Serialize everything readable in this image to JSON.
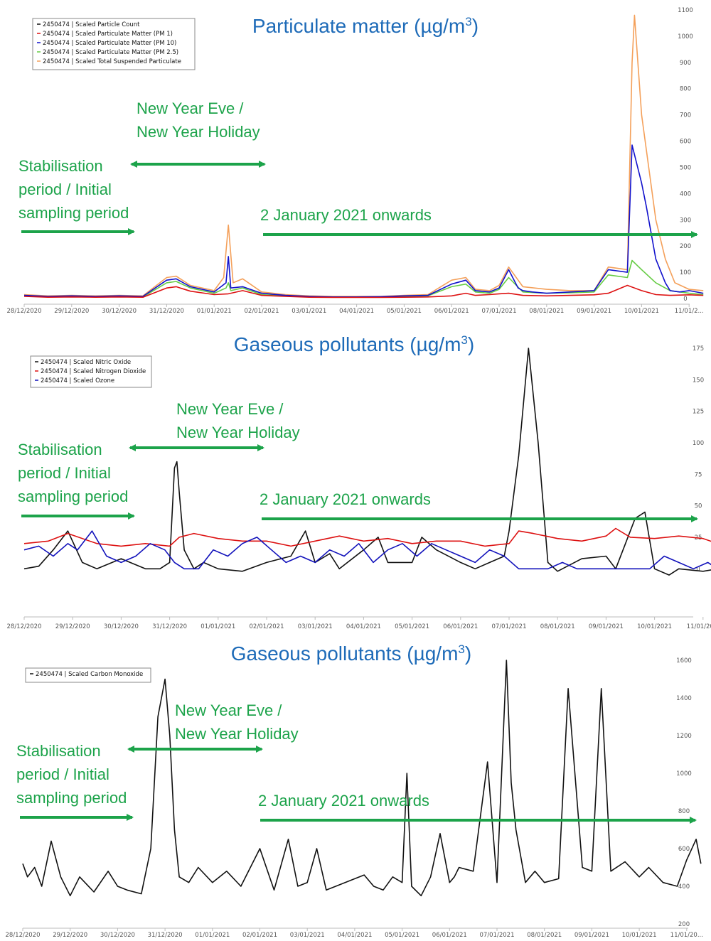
{
  "chart_data": [
    {
      "type": "line",
      "title": "Particulate matter (µg/m",
      "title_superscript": "3",
      "title_suffix": ")",
      "x_tick_labels": [
        "28/12/2020",
        "29/12/2020",
        "30/12/2020",
        "31/12/2020",
        "01/01/2021",
        "02/01/2021",
        "03/01/2021",
        "04/01/2021",
        "05/01/2021",
        "06/01/2021",
        "07/01/2021",
        "08/01/2021",
        "09/01/2021",
        "10/01/2021",
        "11/01/2..."
      ],
      "y_tick_labels": [
        "0",
        "100",
        "200",
        "300",
        "400",
        "500",
        "600",
        "700",
        "800",
        "900",
        "1000",
        "1100"
      ],
      "ylim": [
        0,
        1100
      ],
      "grid": false,
      "legend_position": "top-left",
      "series": [
        {
          "name": "2450474 | Scaled Particle Count",
          "color": "#111111",
          "x": [],
          "y": []
        },
        {
          "name": "2450474 | Scaled Particulate Matter (PM 1)",
          "color": "#dd1111",
          "x": [
            0,
            0.5,
            1,
            1.5,
            2,
            2.5,
            3,
            3.2,
            3.5,
            4,
            4.3,
            4.6,
            5,
            5.5,
            6,
            6.5,
            7,
            7.5,
            8,
            8.5,
            9,
            9.3,
            9.5,
            9.8,
            10,
            10.2,
            10.5,
            11,
            11.5,
            12,
            12.3,
            12.7,
            13,
            13.3,
            13.6,
            14,
            14.3
          ],
          "y": [
            8,
            5,
            6,
            5,
            6,
            5,
            40,
            45,
            28,
            15,
            18,
            30,
            12,
            8,
            5,
            4,
            4,
            4,
            5,
            6,
            10,
            20,
            12,
            15,
            18,
            20,
            12,
            10,
            12,
            14,
            20,
            50,
            30,
            15,
            12,
            14,
            12
          ]
        },
        {
          "name": "2450474 | Scaled Particulate Matter (PM 10)",
          "color": "#1111cc",
          "x": [
            0,
            0.5,
            1,
            1.5,
            2,
            2.5,
            3,
            3.2,
            3.5,
            4,
            4.25,
            4.3,
            4.35,
            4.6,
            5,
            5.5,
            6,
            6.5,
            7,
            7.5,
            8,
            8.5,
            9,
            9.3,
            9.5,
            9.8,
            10,
            10.2,
            10.4,
            10.5,
            10.7,
            11,
            11.5,
            12,
            12.3,
            12.7,
            12.8,
            13,
            13.1,
            13.3,
            13.5,
            13.6,
            13.8,
            14,
            14.3
          ],
          "y": [
            12,
            8,
            10,
            8,
            10,
            8,
            70,
            75,
            45,
            25,
            60,
            160,
            40,
            45,
            20,
            12,
            8,
            6,
            6,
            7,
            10,
            12,
            55,
            70,
            30,
            25,
            40,
            110,
            40,
            30,
            25,
            20,
            25,
            30,
            110,
            100,
            585,
            440,
            350,
            150,
            60,
            30,
            25,
            30,
            20
          ]
        },
        {
          "name": "2450474 | Scaled Particulate Matter (PM 2.5)",
          "color": "#66cc44",
          "x": [
            0,
            0.5,
            1,
            1.5,
            2,
            2.5,
            3,
            3.2,
            3.5,
            4,
            4.25,
            4.3,
            4.35,
            4.6,
            5,
            5.5,
            6,
            6.5,
            7,
            7.5,
            8,
            8.5,
            9,
            9.3,
            9.5,
            9.8,
            10,
            10.2,
            10.5,
            11,
            11.5,
            12,
            12.3,
            12.7,
            12.8,
            13,
            13.3,
            13.6,
            14,
            14.3
          ],
          "y": [
            10,
            6,
            8,
            6,
            8,
            6,
            60,
            65,
            40,
            20,
            40,
            60,
            30,
            40,
            15,
            10,
            6,
            5,
            5,
            6,
            8,
            10,
            45,
            55,
            25,
            20,
            35,
            80,
            25,
            20,
            22,
            25,
            90,
            80,
            145,
            110,
            60,
            30,
            20,
            15
          ]
        },
        {
          "name": "2450474 | Scaled Total Suspended Particulate",
          "color": "#f4a05a",
          "x": [
            0,
            0.5,
            1,
            1.5,
            2,
            2.5,
            3,
            3.2,
            3.5,
            4,
            4.2,
            4.3,
            4.4,
            4.6,
            5,
            5.5,
            6,
            6.5,
            7,
            7.5,
            8,
            8.5,
            9,
            9.3,
            9.5,
            9.8,
            10,
            10.2,
            10.5,
            11,
            11.5,
            12,
            12.3,
            12.7,
            12.8,
            12.85,
            13,
            13.3,
            13.5,
            13.7,
            14,
            14.3
          ],
          "y": [
            15,
            10,
            12,
            10,
            12,
            10,
            80,
            85,
            50,
            30,
            80,
            280,
            60,
            75,
            25,
            15,
            10,
            8,
            8,
            8,
            12,
            15,
            70,
            80,
            35,
            30,
            50,
            120,
            45,
            35,
            30,
            30,
            120,
            110,
            900,
            1080,
            700,
            300,
            150,
            60,
            35,
            30
          ]
        }
      ]
    },
    {
      "type": "line",
      "title": "Gaseous pollutants (µg/m",
      "title_superscript": "3",
      "title_suffix": ")",
      "x_tick_labels": [
        "28/12/2020",
        "29/12/2020",
        "30/12/2020",
        "31/12/2020",
        "01/01/2021",
        "02/01/2021",
        "03/01/2021",
        "04/01/2021",
        "05/01/2021",
        "06/01/2021",
        "07/01/2021",
        "08/01/2021",
        "09/01/2021",
        "10/01/2021",
        "11/01/20..."
      ],
      "y_tick_labels": [
        "0",
        "25",
        "50",
        "75",
        "100",
        "125",
        "150",
        "175"
      ],
      "ylim": [
        -10,
        175
      ],
      "grid": false,
      "legend_position": "top-left",
      "series": [
        {
          "name": "2450474 | Scaled Nitric Oxide",
          "color": "#111111",
          "x": [
            0,
            0.3,
            0.6,
            0.9,
            1.2,
            1.5,
            2,
            2.5,
            2.8,
            3,
            3.1,
            3.15,
            3.2,
            3.3,
            3.5,
            3.7,
            4,
            4.5,
            5,
            5.5,
            5.8,
            6,
            6.3,
            6.5,
            7,
            7.3,
            7.5,
            8,
            8.2,
            8.5,
            9,
            9.3,
            9.6,
            9.9,
            10,
            10.2,
            10.4,
            10.6,
            10.8,
            11,
            11.5,
            12,
            12.2,
            12.4,
            12.6,
            12.8,
            13,
            13.3,
            13.5,
            14,
            14.3
          ],
          "y": [
            0,
            2,
            15,
            30,
            5,
            0,
            8,
            0,
            0,
            5,
            80,
            85,
            60,
            15,
            0,
            5,
            0,
            -2,
            5,
            10,
            30,
            5,
            12,
            0,
            15,
            25,
            5,
            5,
            25,
            15,
            5,
            0,
            5,
            10,
            30,
            90,
            175,
            100,
            5,
            -2,
            8,
            10,
            0,
            20,
            40,
            45,
            0,
            -5,
            0,
            -2,
            0
          ]
        },
        {
          "name": "2450474 | Scaled Nitrogen Dioxide",
          "color": "#dd1111",
          "x": [
            0,
            0.5,
            0.9,
            1.5,
            2,
            2.5,
            3,
            3.2,
            3.5,
            4,
            4.5,
            5,
            5.5,
            6,
            6.5,
            7,
            7.5,
            8,
            8.5,
            9,
            9.5,
            10,
            10.2,
            10.5,
            11,
            11.5,
            12,
            12.2,
            12.5,
            13,
            13.5,
            14,
            14.3
          ],
          "y": [
            20,
            22,
            28,
            20,
            18,
            20,
            18,
            25,
            28,
            24,
            22,
            22,
            18,
            22,
            26,
            22,
            24,
            20,
            22,
            22,
            18,
            20,
            30,
            28,
            24,
            22,
            26,
            32,
            25,
            24,
            26,
            24,
            20
          ]
        },
        {
          "name": "2450474 | Scaled Ozone",
          "color": "#1111bb",
          "x": [
            0,
            0.3,
            0.6,
            0.9,
            1.1,
            1.4,
            1.7,
            2,
            2.3,
            2.6,
            2.9,
            3.1,
            3.3,
            3.6,
            3.9,
            4.2,
            4.5,
            4.8,
            5.1,
            5.4,
            5.7,
            6,
            6.3,
            6.6,
            6.9,
            7.2,
            7.5,
            7.8,
            8.1,
            8.4,
            8.7,
            9,
            9.3,
            9.6,
            9.9,
            10.2,
            10.5,
            10.8,
            11.1,
            11.4,
            11.7,
            12,
            12.3,
            12.6,
            12.9,
            13.2,
            13.5,
            13.8,
            14.1,
            14.3
          ],
          "y": [
            15,
            18,
            10,
            20,
            15,
            30,
            10,
            5,
            10,
            20,
            15,
            5,
            0,
            0,
            15,
            10,
            20,
            25,
            15,
            5,
            10,
            5,
            15,
            10,
            20,
            5,
            15,
            20,
            10,
            20,
            15,
            10,
            5,
            15,
            10,
            0,
            0,
            0,
            5,
            0,
            0,
            0,
            0,
            0,
            0,
            10,
            5,
            0,
            5,
            0
          ]
        }
      ]
    },
    {
      "type": "line",
      "title": "Gaseous pollutants (µg/m",
      "title_superscript": "3",
      "title_suffix": ")",
      "x_tick_labels": [
        "28/12/2020",
        "29/12/2020",
        "30/12/2020",
        "31/12/2020",
        "01/01/2021",
        "02/01/2021",
        "03/01/2021",
        "04/01/2021",
        "05/01/2021",
        "06/01/2021",
        "07/01/2021",
        "08/01/2021",
        "09/01/2021",
        "10/01/2021",
        "11/01/20..."
      ],
      "y_tick_labels": [
        "200",
        "400",
        "600",
        "800",
        "1000",
        "1200",
        "1400",
        "1600"
      ],
      "ylim": [
        200,
        1600
      ],
      "grid": false,
      "legend_position": "top-left",
      "series": [
        {
          "name": "2450474 | Scaled Carbon Monoxide",
          "color": "#111111",
          "x": [
            0,
            0.1,
            0.25,
            0.4,
            0.6,
            0.8,
            1,
            1.2,
            1.5,
            1.8,
            2,
            2.2,
            2.5,
            2.7,
            2.85,
            3,
            3.1,
            3.2,
            3.3,
            3.5,
            3.7,
            4,
            4.3,
            4.6,
            5,
            5.3,
            5.6,
            5.8,
            6,
            6.2,
            6.4,
            6.6,
            7,
            7.2,
            7.4,
            7.6,
            7.8,
            8,
            8.1,
            8.2,
            8.4,
            8.6,
            8.8,
            9,
            9.1,
            9.2,
            9.5,
            9.8,
            10,
            10.2,
            10.3,
            10.4,
            10.6,
            10.8,
            11,
            11.3,
            11.5,
            11.8,
            12,
            12.2,
            12.4,
            12.7,
            13,
            13.2,
            13.5,
            13.8,
            14,
            14.2,
            14.3
          ],
          "y": [
            520,
            450,
            500,
            400,
            640,
            450,
            350,
            450,
            370,
            480,
            400,
            380,
            360,
            600,
            1300,
            1500,
            1200,
            700,
            450,
            420,
            500,
            420,
            480,
            400,
            600,
            380,
            650,
            400,
            420,
            600,
            380,
            400,
            440,
            460,
            400,
            380,
            450,
            420,
            1000,
            400,
            350,
            450,
            680,
            420,
            450,
            500,
            480,
            1060,
            420,
            1600,
            950,
            700,
            420,
            480,
            420,
            440,
            1450,
            500,
            480,
            1450,
            480,
            530,
            450,
            500,
            420,
            400,
            540,
            650,
            520
          ]
        }
      ]
    }
  ],
  "annotations": {
    "holiday_line1": "New Year Eve /",
    "holiday_line2": "New Year Holiday",
    "stabilisation_line1": "Stabilisation",
    "stabilisation_line2": "period / Initial",
    "stabilisation_line3": "sampling period",
    "onwards": "2 January 2021 onwards",
    "arrow_color": "#1ca34a",
    "text_color": "#1ca34a",
    "title_color": "#1e6bb8"
  }
}
